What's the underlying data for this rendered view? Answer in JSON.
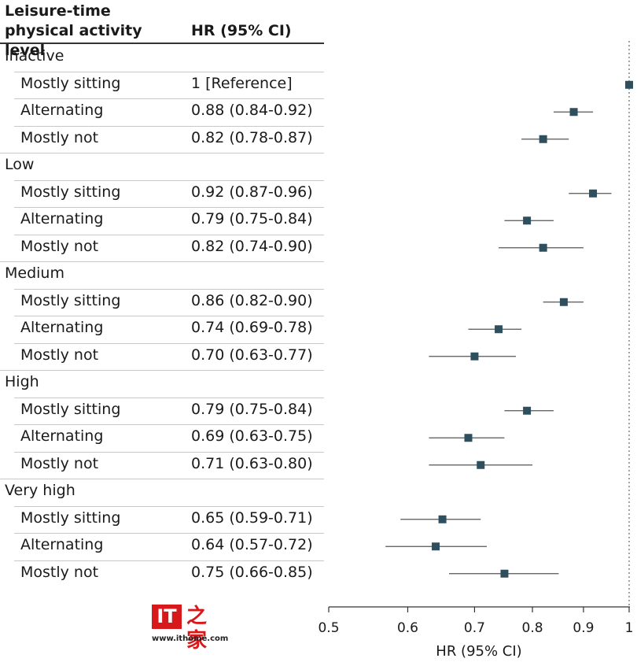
{
  "header": {
    "level_title_line1": "Leisure-time",
    "level_title_line2": "physical activity level",
    "hr_title": "HR (95% CI)"
  },
  "groups": [
    {
      "label": "Inactive",
      "items": [
        {
          "label": "Mostly sitting",
          "hr_text": "1 [Reference]"
        },
        {
          "label": "Alternating",
          "hr_text": "0.88 (0.84-0.92)"
        },
        {
          "label": "Mostly not",
          "hr_text": "0.82 (0.78-0.87)"
        }
      ]
    },
    {
      "label": "Low",
      "items": [
        {
          "label": "Mostly sitting",
          "hr_text": "0.92 (0.87-0.96)"
        },
        {
          "label": "Alternating",
          "hr_text": "0.79 (0.75-0.84)"
        },
        {
          "label": "Mostly not",
          "hr_text": "0.82 (0.74-0.90)"
        }
      ]
    },
    {
      "label": "Medium",
      "items": [
        {
          "label": "Mostly sitting",
          "hr_text": "0.86 (0.82-0.90)"
        },
        {
          "label": "Alternating",
          "hr_text": "0.74 (0.69-0.78)"
        },
        {
          "label": "Mostly not",
          "hr_text": "0.70 (0.63-0.77)"
        }
      ]
    },
    {
      "label": "High",
      "items": [
        {
          "label": "Mostly sitting",
          "hr_text": "0.79 (0.75-0.84)"
        },
        {
          "label": "Alternating",
          "hr_text": "0.69 (0.63-0.75)"
        },
        {
          "label": "Mostly not",
          "hr_text": "0.71 (0.63-0.80)"
        }
      ]
    },
    {
      "label": "Very high",
      "items": [
        {
          "label": "Mostly sitting",
          "hr_text": "0.65 (0.59-0.71)"
        },
        {
          "label": "Alternating",
          "hr_text": "0.64 (0.57-0.72)"
        },
        {
          "label": "Mostly not",
          "hr_text": "0.75 (0.66-0.85)"
        }
      ]
    }
  ],
  "chart_data": {
    "type": "scatter",
    "xlabel": "HR (95% CI)",
    "xlim": [
      0.5,
      1
    ],
    "log_scale_x": true,
    "xticks": [
      0.5,
      0.6,
      0.7,
      0.8,
      0.9,
      1
    ],
    "xtick_labels": [
      "0.5",
      "0.6",
      "0.7",
      "0.8",
      "0.9",
      "1"
    ],
    "reference_line_x": 1,
    "marker_color": "#2e4f5e",
    "points": [
      {
        "group": "Inactive",
        "category": "Mostly sitting",
        "hr": 1.0,
        "lo": 1.0,
        "hi": 1.0
      },
      {
        "group": "Inactive",
        "category": "Alternating",
        "hr": 0.88,
        "lo": 0.84,
        "hi": 0.92
      },
      {
        "group": "Inactive",
        "category": "Mostly not",
        "hr": 0.82,
        "lo": 0.78,
        "hi": 0.87
      },
      {
        "group": "Low",
        "category": "Mostly sitting",
        "hr": 0.92,
        "lo": 0.87,
        "hi": 0.96
      },
      {
        "group": "Low",
        "category": "Alternating",
        "hr": 0.79,
        "lo": 0.75,
        "hi": 0.84
      },
      {
        "group": "Low",
        "category": "Mostly not",
        "hr": 0.82,
        "lo": 0.74,
        "hi": 0.9
      },
      {
        "group": "Medium",
        "category": "Mostly sitting",
        "hr": 0.86,
        "lo": 0.82,
        "hi": 0.9
      },
      {
        "group": "Medium",
        "category": "Alternating",
        "hr": 0.74,
        "lo": 0.69,
        "hi": 0.78
      },
      {
        "group": "Medium",
        "category": "Mostly not",
        "hr": 0.7,
        "lo": 0.63,
        "hi": 0.77
      },
      {
        "group": "High",
        "category": "Mostly sitting",
        "hr": 0.79,
        "lo": 0.75,
        "hi": 0.84
      },
      {
        "group": "High",
        "category": "Alternating",
        "hr": 0.69,
        "lo": 0.63,
        "hi": 0.75
      },
      {
        "group": "High",
        "category": "Mostly not",
        "hr": 0.71,
        "lo": 0.63,
        "hi": 0.8
      },
      {
        "group": "Very high",
        "category": "Mostly sitting",
        "hr": 0.65,
        "lo": 0.59,
        "hi": 0.71
      },
      {
        "group": "Very high",
        "category": "Alternating",
        "hr": 0.64,
        "lo": 0.57,
        "hi": 0.72
      },
      {
        "group": "Very high",
        "category": "Mostly not",
        "hr": 0.75,
        "lo": 0.66,
        "hi": 0.85
      }
    ]
  },
  "watermark": {
    "logo_text": "IT",
    "logo_cn": "之家",
    "url": "www.ithome.com"
  }
}
